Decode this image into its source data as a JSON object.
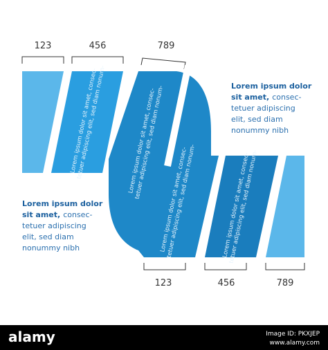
{
  "top_labels": [
    "123",
    "456",
    "789"
  ],
  "bottom_labels": [
    "123",
    "456",
    "789"
  ],
  "right_block": {
    "title_lines": [
      "Lorem ipsum dolor",
      "sit amet,"
    ],
    "body_lines": [
      "consec-",
      "tetuer adipiscing",
      "elit, sed diam",
      "nonummy nibh"
    ]
  },
  "left_block": {
    "title_lines": [
      "Lorem ipsum dolor",
      "sit amet,"
    ],
    "body_lines": [
      "consec-",
      "tetuer adipiscing",
      "elit, sed diam",
      "nonummy nibh"
    ]
  },
  "shape_texts": [
    [
      "Lorem ipsum dolor sit amet, consec-",
      "tetuer adipiscing elit, sed diam nonum-"
    ],
    [
      "Lorem ipsum dolor sit amet, consec-",
      "tetuer adipiscing elit, sed diam nonum-"
    ],
    [
      "Lorem ipsum dolor sit amet, consec-",
      "tetuer adipiscing elit, sed diam nonum-"
    ],
    [
      "Lorem ipsum dolor sit amet, consec-",
      "tetuer adipiscing elit, sed diam nonum-"
    ]
  ],
  "watermark": {
    "brand": "alamy",
    "image_id": "Image ID: PKXJEP",
    "url": "www.alamy.com"
  }
}
